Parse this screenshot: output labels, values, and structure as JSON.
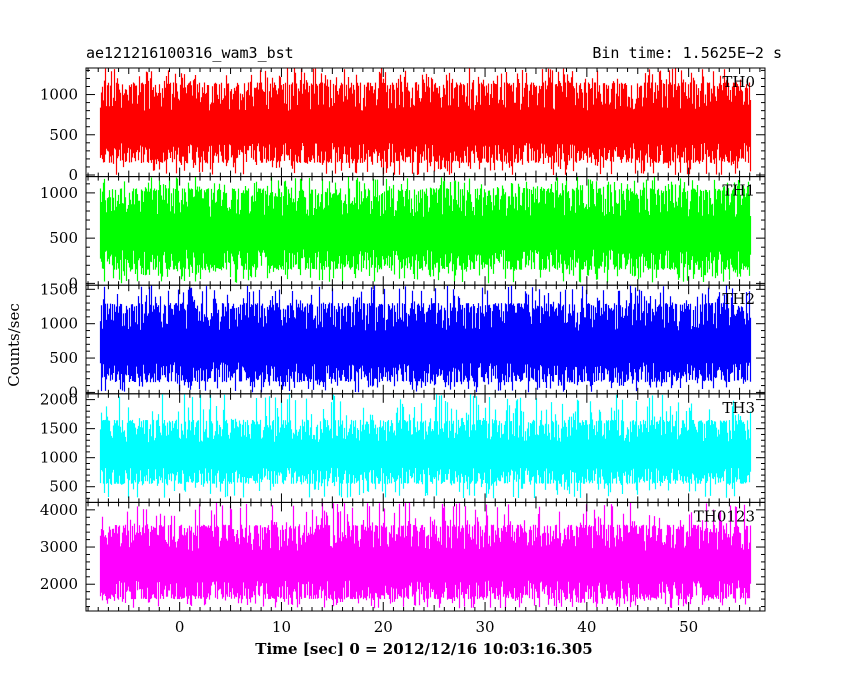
{
  "header": {
    "title": "ae121216100316_wam3_bst",
    "bin_time": "Bin time: 1.5625E−2 s"
  },
  "chart_data": {
    "type": "line",
    "ylabel": "Counts/sec",
    "xlabel": "Time [sec] 0 = 2012/12/16 10:03:16.305",
    "xlim": [
      -9.2,
      57.5
    ],
    "xticks": [
      0,
      10,
      20,
      30,
      40,
      50
    ],
    "data_range": [
      -7.8,
      56.0
    ],
    "panels": [
      {
        "name": "TH0",
        "color": "#ff0000",
        "ylim": [
          -20,
          1330
        ],
        "yticks": [
          0,
          500,
          1000
        ],
        "typical_low": 150,
        "typical_high": 1150,
        "min": 0,
        "max": 1330
      },
      {
        "name": "TH1",
        "color": "#00ff00",
        "ylim": [
          -20,
          1180
        ],
        "yticks": [
          0,
          500,
          1000
        ],
        "typical_low": 150,
        "typical_high": 1050,
        "min": 0,
        "max": 1180
      },
      {
        "name": "TH2",
        "color": "#0000ff",
        "ylim": [
          -20,
          1560
        ],
        "yticks": [
          0,
          500,
          1000,
          1500
        ],
        "typical_low": 150,
        "typical_high": 1300,
        "min": 0,
        "max": 1560
      },
      {
        "name": "TH3",
        "color": "#00ffff",
        "ylim": [
          230,
          2100
        ],
        "yticks": [
          500,
          1000,
          1500,
          2000
        ],
        "typical_low": 550,
        "typical_high": 1650,
        "min": 300,
        "max": 2100
      },
      {
        "name": "TH0123",
        "color": "#ff00ff",
        "ylim": [
          1280,
          4200
        ],
        "yticks": [
          2000,
          3000,
          4000
        ],
        "typical_low": 1600,
        "typical_high": 3600,
        "min": 1350,
        "max": 4200
      }
    ]
  }
}
